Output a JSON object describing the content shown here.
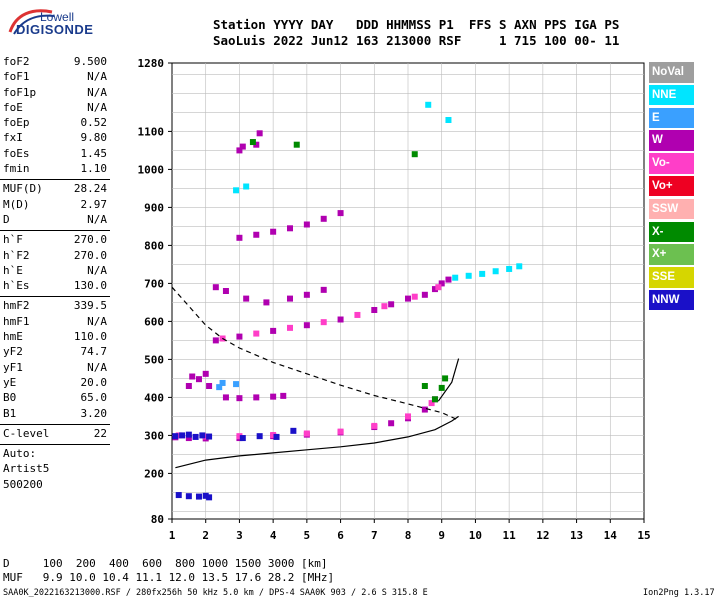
{
  "logo": {
    "top": "Lowell",
    "main": "DIGISONDE"
  },
  "header": {
    "line1": "Station YYYY DAY   DDD HHMMSS P1  FFS S AXN PPS IGA PS",
    "line2": "SaoLuis 2022 Jun12 163 213000 RSF     1 715 100 00- 11"
  },
  "params": {
    "group1": [
      {
        "k": "foF2",
        "v": "9.500"
      },
      {
        "k": "foF1",
        "v": "N/A"
      },
      {
        "k": "foF1p",
        "v": "N/A"
      },
      {
        "k": "foE",
        "v": "N/A"
      },
      {
        "k": "foEp",
        "v": "0.52"
      },
      {
        "k": "fxI",
        "v": "9.80"
      },
      {
        "k": "foEs",
        "v": "1.45"
      },
      {
        "k": "fmin",
        "v": "1.10"
      }
    ],
    "group2": [
      {
        "k": "MUF(D)",
        "v": "28.24"
      },
      {
        "k": "M(D)",
        "v": "2.97"
      },
      {
        "k": "D",
        "v": "N/A"
      }
    ],
    "group3": [
      {
        "k": "h`F",
        "v": "270.0"
      },
      {
        "k": "h`F2",
        "v": "270.0"
      },
      {
        "k": "h`E",
        "v": "N/A"
      },
      {
        "k": "h`Es",
        "v": "130.0"
      }
    ],
    "group4": [
      {
        "k": "hmF2",
        "v": "339.5"
      },
      {
        "k": "hmF1",
        "v": "N/A"
      },
      {
        "k": "hmE",
        "v": "110.0"
      },
      {
        "k": "yF2",
        "v": "74.7"
      },
      {
        "k": "yF1",
        "v": "N/A"
      },
      {
        "k": "yE",
        "v": "20.0"
      },
      {
        "k": "B0",
        "v": "65.0"
      },
      {
        "k": "B1",
        "v": "3.20"
      }
    ],
    "group5": [
      {
        "k": "C-level",
        "v": "22"
      }
    ],
    "auto_lines": [
      "Auto:",
      "Artist5",
      "500200"
    ]
  },
  "legend": [
    {
      "label": "NoVal",
      "color": "#9e9e9e"
    },
    {
      "label": "NNE",
      "color": "#00e5ff"
    },
    {
      "label": "E",
      "color": "#3aa0ff"
    },
    {
      "label": "W",
      "color": "#b000b0"
    },
    {
      "label": "Vo-",
      "color": "#ff3ec8"
    },
    {
      "label": "Vo+",
      "color": "#ee0022"
    },
    {
      "label": "SSW",
      "color": "#ffb0b0"
    },
    {
      "label": "X-",
      "color": "#008a00"
    },
    {
      "label": "X+",
      "color": "#6cc050"
    },
    {
      "label": "SSE",
      "color": "#d6d600"
    },
    {
      "label": "NNW",
      "color": "#1a10c8"
    }
  ],
  "footer": {
    "d_line": "D     100  200  400  600  800 1000 1500 3000 [km]",
    "muf_line": "MUF   9.9 10.0 10.4 11.1 12.0 13.5 17.6 28.2 [MHz]",
    "file_line": "SAA0K_2022163213000.RSF / 280fx256h 50 kHz 5.0 km / DPS-4 SAA0K 903 / 2.6 S 315.8 E",
    "version": "Ion2Png 1.3.17"
  },
  "chart_data": {
    "type": "scatter",
    "xlim": [
      1,
      15
    ],
    "ylim": [
      80,
      1280
    ],
    "x_ticks": [
      1,
      2,
      3,
      4,
      5,
      6,
      7,
      8,
      9,
      10,
      11,
      12,
      13,
      14,
      15
    ],
    "y_ticks": [
      80,
      200,
      300,
      400,
      500,
      600,
      700,
      800,
      900,
      1000,
      1100,
      1280
    ],
    "grid": true,
    "x_unit": "MHz",
    "y_unit": "km",
    "traces": [
      {
        "color": "W",
        "points": [
          [
            1.1,
            295
          ],
          [
            1.5,
            293
          ],
          [
            2.0,
            292
          ],
          [
            3.0,
            293
          ],
          [
            4.0,
            298
          ],
          [
            5.0,
            302
          ],
          [
            6.0,
            308
          ],
          [
            7.0,
            322
          ],
          [
            7.5,
            332
          ],
          [
            8.0,
            345
          ],
          [
            8.5,
            368
          ],
          [
            8.8,
            395
          ]
        ]
      },
      {
        "color": "Vo-",
        "points": [
          [
            1.2,
            300
          ],
          [
            2.0,
            297
          ],
          [
            3.0,
            298
          ],
          [
            4.0,
            301
          ],
          [
            5.0,
            305
          ],
          [
            6.0,
            310
          ],
          [
            7.0,
            325
          ],
          [
            8.0,
            350
          ],
          [
            8.7,
            385
          ]
        ]
      },
      {
        "color": "X-",
        "points": [
          [
            8.8,
            395
          ],
          [
            9.0,
            425
          ],
          [
            9.1,
            450
          ]
        ]
      },
      {
        "color": "NNW",
        "points": [
          [
            1.1,
            298
          ],
          [
            1.3,
            300
          ],
          [
            1.5,
            302
          ],
          [
            1.7,
            296
          ],
          [
            1.9,
            300
          ],
          [
            2.1,
            297
          ],
          [
            3.1,
            293
          ],
          [
            3.6,
            298
          ],
          [
            4.1,
            296
          ],
          [
            4.6,
            312
          ],
          [
            1.2,
            143
          ],
          [
            1.5,
            140
          ],
          [
            1.8,
            139
          ],
          [
            2.0,
            141
          ],
          [
            2.1,
            137
          ]
        ]
      },
      {
        "color": "W",
        "points": [
          [
            2.3,
            550
          ],
          [
            3.0,
            560
          ],
          [
            4.0,
            575
          ],
          [
            5.0,
            590
          ],
          [
            6.0,
            605
          ],
          [
            7.0,
            630
          ],
          [
            7.5,
            645
          ],
          [
            8.0,
            660
          ],
          [
            8.5,
            670
          ],
          [
            8.8,
            685
          ],
          [
            9.0,
            700
          ],
          [
            9.2,
            710
          ]
        ]
      },
      {
        "color": "Vo-",
        "points": [
          [
            2.5,
            555
          ],
          [
            3.5,
            568
          ],
          [
            4.5,
            583
          ],
          [
            5.5,
            598
          ],
          [
            6.5,
            617
          ],
          [
            7.3,
            640
          ],
          [
            8.2,
            665
          ],
          [
            8.9,
            690
          ]
        ]
      },
      {
        "color": "NNE",
        "points": [
          [
            9.4,
            715
          ],
          [
            9.8,
            720
          ],
          [
            10.2,
            725
          ],
          [
            10.6,
            732
          ],
          [
            11.0,
            738
          ],
          [
            11.3,
            745
          ]
        ]
      },
      {
        "color": "W",
        "points": [
          [
            2.6,
            400
          ],
          [
            3.0,
            398
          ],
          [
            3.5,
            400
          ],
          [
            4.0,
            402
          ],
          [
            4.3,
            404
          ]
        ]
      },
      {
        "color": "W",
        "points": [
          [
            3.0,
            820
          ],
          [
            3.5,
            828
          ],
          [
            4.0,
            836
          ],
          [
            4.5,
            845
          ],
          [
            5.0,
            855
          ],
          [
            5.5,
            870
          ],
          [
            6.0,
            885
          ]
        ]
      },
      {
        "color": "W",
        "points": [
          [
            2.3,
            690
          ],
          [
            2.6,
            680
          ],
          [
            3.2,
            660
          ],
          [
            3.8,
            650
          ],
          [
            4.5,
            660
          ],
          [
            5.0,
            670
          ],
          [
            5.5,
            683
          ]
        ]
      },
      {
        "color": "W",
        "points": [
          [
            3.1,
            1060
          ],
          [
            3.5,
            1065
          ],
          [
            3.0,
            1050
          ],
          [
            3.6,
            1095
          ]
        ]
      },
      {
        "color": "X-",
        "points": [
          [
            3.4,
            1072
          ],
          [
            4.7,
            1065
          ],
          [
            8.5,
            430
          ],
          [
            8.2,
            1040
          ]
        ]
      },
      {
        "color": "NNE",
        "points": [
          [
            2.9,
            945
          ],
          [
            3.2,
            955
          ],
          [
            8.6,
            1170
          ],
          [
            9.2,
            1130
          ]
        ]
      },
      {
        "color": "E",
        "points": [
          [
            2.4,
            427
          ],
          [
            2.5,
            438
          ],
          [
            2.9,
            435
          ]
        ]
      },
      {
        "color": "W",
        "points": [
          [
            1.6,
            455
          ],
          [
            1.8,
            448
          ],
          [
            2.0,
            462
          ],
          [
            1.5,
            430
          ],
          [
            2.1,
            430
          ]
        ]
      }
    ],
    "model_curves": [
      {
        "style": "solid",
        "points": [
          [
            1.1,
            215
          ],
          [
            2.0,
            235
          ],
          [
            3.0,
            246
          ],
          [
            4.0,
            254
          ],
          [
            5.0,
            262
          ],
          [
            6.0,
            270
          ],
          [
            7.0,
            280
          ],
          [
            8.0,
            296
          ],
          [
            8.8,
            315
          ],
          [
            9.3,
            338
          ],
          [
            9.5,
            350
          ]
        ]
      },
      {
        "style": "solid",
        "points": [
          [
            8.9,
            390
          ],
          [
            9.3,
            440
          ],
          [
            9.5,
            502
          ]
        ]
      },
      {
        "style": "dashed",
        "points": [
          [
            1.0,
            690
          ],
          [
            1.5,
            640
          ],
          [
            2.0,
            590
          ],
          [
            2.5,
            555
          ],
          [
            3.0,
            530
          ],
          [
            4.0,
            492
          ],
          [
            5.0,
            462
          ],
          [
            6.0,
            432
          ],
          [
            7.0,
            405
          ],
          [
            8.0,
            383
          ],
          [
            9.0,
            360
          ],
          [
            9.5,
            340
          ]
        ]
      }
    ]
  }
}
